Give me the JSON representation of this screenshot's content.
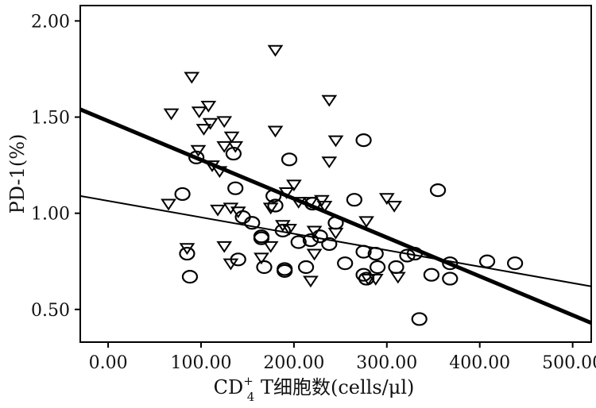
{
  "chart_data": {
    "type": "scatter",
    "title": "",
    "xlabel": {
      "prefix": "CD",
      "sup": "+",
      "sub": "4",
      "suffix": " T细胞数(cells/μl)"
    },
    "ylabel": "PD-1(%)",
    "xlim": [
      -30,
      520
    ],
    "ylim": [
      0.33,
      2.08
    ],
    "xticks": [
      0,
      100,
      200,
      300,
      400,
      500
    ],
    "xtick_labels": [
      "0.00",
      "100.00",
      "200.00",
      "300.00",
      "400.00",
      "500.00"
    ],
    "yticks": [
      0.5,
      1.0,
      1.5,
      2.0
    ],
    "ytick_labels": [
      "0.50",
      "1.00",
      "1.50",
      "2.00"
    ],
    "grid": false,
    "series": [
      {
        "marker": "triangle-down",
        "points": [
          [
            90,
            1.71
          ],
          [
            68,
            1.52
          ],
          [
            98,
            1.53
          ],
          [
            108,
            1.56
          ],
          [
            125,
            1.48
          ],
          [
            103,
            1.44
          ],
          [
            110,
            1.47
          ],
          [
            133,
            1.4
          ],
          [
            125,
            1.35
          ],
          [
            137,
            1.35
          ],
          [
            97,
            1.33
          ],
          [
            112,
            1.25
          ],
          [
            120,
            1.22
          ],
          [
            180,
            1.85
          ],
          [
            180,
            1.43
          ],
          [
            238,
            1.59
          ],
          [
            245,
            1.38
          ],
          [
            238,
            1.27
          ],
          [
            200,
            1.15
          ],
          [
            192,
            1.11
          ],
          [
            230,
            1.07
          ],
          [
            65,
            1.05
          ],
          [
            118,
            1.02
          ],
          [
            132,
            1.03
          ],
          [
            140,
            1.01
          ],
          [
            175,
            1.03
          ],
          [
            205,
            1.06
          ],
          [
            218,
            1.06
          ],
          [
            233,
            1.04
          ],
          [
            300,
            1.08
          ],
          [
            308,
            1.04
          ],
          [
            278,
            0.96
          ],
          [
            188,
            0.94
          ],
          [
            222,
            0.91
          ],
          [
            195,
            0.92
          ],
          [
            85,
            0.82
          ],
          [
            125,
            0.83
          ],
          [
            175,
            0.83
          ],
          [
            165,
            0.77
          ],
          [
            222,
            0.79
          ],
          [
            245,
            0.9
          ],
          [
            132,
            0.74
          ],
          [
            218,
            0.65
          ],
          [
            280,
            0.66
          ],
          [
            288,
            0.66
          ],
          [
            312,
            0.67
          ]
        ]
      },
      {
        "marker": "circle",
        "points": [
          [
            95,
            1.29
          ],
          [
            135,
            1.31
          ],
          [
            195,
            1.28
          ],
          [
            275,
            1.38
          ],
          [
            355,
            1.12
          ],
          [
            137,
            1.13
          ],
          [
            80,
            1.1
          ],
          [
            178,
            1.09
          ],
          [
            265,
            1.07
          ],
          [
            180,
            1.04
          ],
          [
            220,
            1.05
          ],
          [
            145,
            0.98
          ],
          [
            155,
            0.95
          ],
          [
            165,
            0.88
          ],
          [
            165,
            0.87
          ],
          [
            188,
            0.91
          ],
          [
            205,
            0.85
          ],
          [
            218,
            0.86
          ],
          [
            228,
            0.88
          ],
          [
            238,
            0.84
          ],
          [
            245,
            0.95
          ],
          [
            85,
            0.79
          ],
          [
            140,
            0.76
          ],
          [
            168,
            0.72
          ],
          [
            190,
            0.7
          ],
          [
            190,
            0.71
          ],
          [
            213,
            0.72
          ],
          [
            255,
            0.74
          ],
          [
            275,
            0.8
          ],
          [
            288,
            0.79
          ],
          [
            290,
            0.72
          ],
          [
            310,
            0.72
          ],
          [
            322,
            0.78
          ],
          [
            330,
            0.79
          ],
          [
            275,
            0.68
          ],
          [
            278,
            0.66
          ],
          [
            348,
            0.68
          ],
          [
            368,
            0.66
          ],
          [
            368,
            0.74
          ],
          [
            408,
            0.75
          ],
          [
            438,
            0.74
          ],
          [
            88,
            0.67
          ],
          [
            335,
            0.45
          ]
        ]
      }
    ],
    "fit_lines": [
      {
        "style": "thick",
        "x": [
          -30,
          520
        ],
        "y": [
          1.54,
          0.43
        ]
      },
      {
        "style": "thin",
        "x": [
          -30,
          520
        ],
        "y": [
          1.09,
          0.62
        ]
      }
    ]
  }
}
